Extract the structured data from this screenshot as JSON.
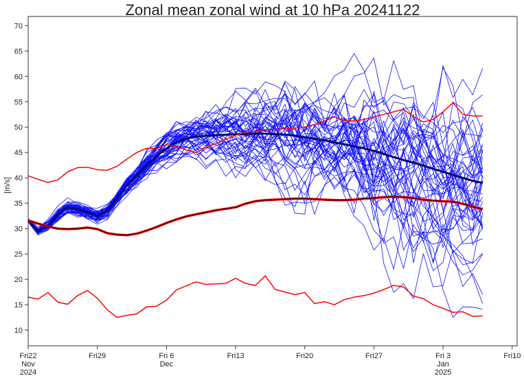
{
  "chart_data": {
    "type": "line",
    "title": "Zonal mean zonal wind at 10 hPa 20241122",
    "ylabel": "[m/s]",
    "xlabel": "",
    "ylim": [
      6.9,
      71.8
    ],
    "xlim_days": [
      0,
      49.5
    ],
    "yticks": [
      10,
      15,
      20,
      25,
      30,
      35,
      40,
      45,
      50,
      55,
      60,
      65,
      70
    ],
    "xticks": [
      {
        "day": 0,
        "lines": [
          "Fri22",
          "Nov",
          "2024"
        ]
      },
      {
        "day": 7,
        "lines": [
          "Fri29"
        ]
      },
      {
        "day": 14,
        "lines": [
          "Fri 6",
          "Dec"
        ]
      },
      {
        "day": 21,
        "lines": [
          "Fri13"
        ]
      },
      {
        "day": 28,
        "lines": [
          "Fri20"
        ]
      },
      {
        "day": 35,
        "lines": [
          "Fri27"
        ]
      },
      {
        "day": 42,
        "lines": [
          "Fri 3",
          "Jan",
          "2025"
        ]
      },
      {
        "day": 49,
        "lines": [
          "Fri10"
        ]
      }
    ],
    "grid": false,
    "colors": {
      "members": "#1010ff",
      "ens_mean": "#0a0a6e",
      "clim": "#ff0000",
      "clim_mean_core": "#000000"
    },
    "ensemble": {
      "member_count": 50,
      "seed": 20241122,
      "mean": [
        31.6,
        29.5,
        30.5,
        32.8,
        34.2,
        33.8,
        33.2,
        32.5,
        33.5,
        36,
        38.5,
        40.5,
        42.5,
        44.3,
        45.8,
        47,
        47.7,
        48.1,
        48.3,
        48.4,
        48.5,
        48.6,
        48.6,
        48.7,
        48.7,
        48.6,
        48.5,
        48.3,
        48,
        47.7,
        47.4,
        47,
        46.6,
        46.2,
        45.8,
        45.3,
        44.7,
        44.1,
        43.5,
        43,
        42.4,
        41.8,
        41.2,
        40.6,
        40,
        39.4,
        39.0
      ]
    },
    "series": [
      {
        "name": "climatology upper",
        "values": [
          40.4,
          39.7,
          39.1,
          39.6,
          41.2,
          42,
          42.1,
          41.6,
          41.5,
          42.3,
          43.7,
          45,
          45.8,
          45.8,
          46.5,
          46.2,
          45.5,
          45,
          46,
          46.7,
          47.6,
          48.4,
          49,
          49.2,
          49.5,
          49.5,
          49.7,
          49.8,
          50,
          50.5,
          51.2,
          52,
          51.3,
          51.2,
          51.5,
          52,
          52.5,
          53,
          53.5,
          52,
          51,
          51.5,
          53,
          54.8,
          52.5,
          52.2,
          52.2
        ]
      },
      {
        "name": "climatology mean",
        "values": [
          31.6,
          31,
          30.4,
          30,
          29.9,
          30,
          30.2,
          29.9,
          29.1,
          28.8,
          28.7,
          29,
          29.6,
          30.3,
          31.1,
          31.8,
          32.4,
          32.8,
          33.2,
          33.6,
          33.9,
          34.2,
          34.9,
          35.4,
          35.6,
          35.7,
          35.8,
          35.9,
          35.9,
          35.8,
          35.7,
          35.6,
          35.6,
          35.7,
          35.9,
          36,
          36.2,
          36.3,
          36.2,
          36,
          35.7,
          35.5,
          35.4,
          35.3,
          34.9,
          34.3,
          33.8
        ]
      },
      {
        "name": "climatology lower",
        "values": [
          16.5,
          16.1,
          17.4,
          15.5,
          15.1,
          16.8,
          17.8,
          16.3,
          14,
          12.5,
          12.9,
          13.2,
          14.6,
          14.7,
          15.9,
          17.9,
          18.7,
          19.5,
          19,
          19.1,
          19.2,
          20.2,
          19.2,
          18.8,
          20.7,
          18,
          17.5,
          17,
          17.4,
          15.2,
          15.6,
          15,
          16,
          16.5,
          16.8,
          17.3,
          18,
          18.8,
          18.5,
          16.7,
          16.2,
          15,
          14.3,
          13.5,
          13.6,
          12.7,
          12.8
        ]
      }
    ]
  }
}
